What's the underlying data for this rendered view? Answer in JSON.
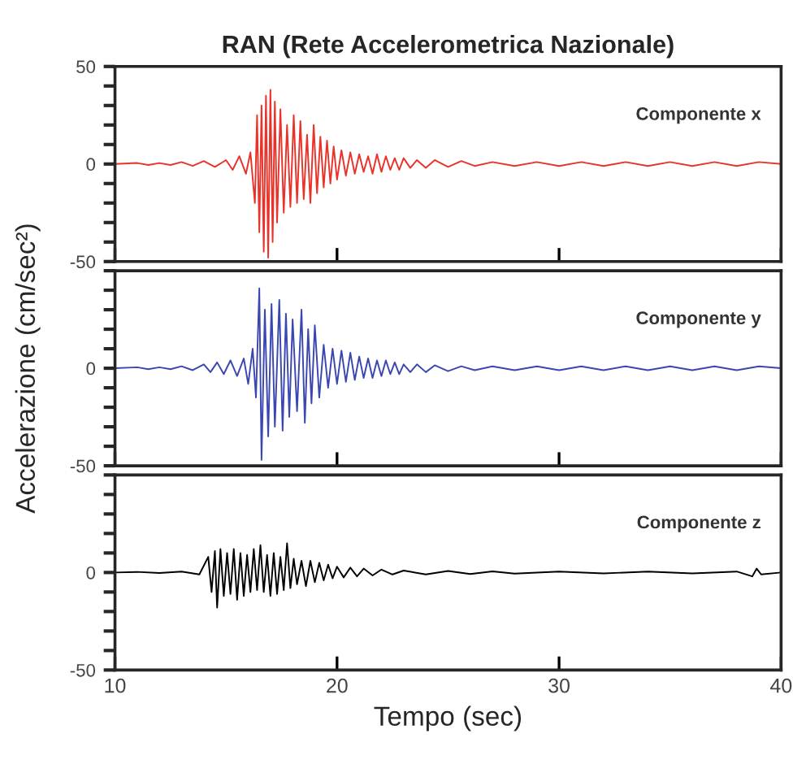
{
  "chart_data": [
    {
      "type": "line",
      "title": "RAN (Rete Accelerometrica Nazionale)",
      "annotations": [
        "Componente x"
      ],
      "tick_labels": "y",
      "line_style": "solid",
      "xlim": [
        10,
        40
      ],
      "xticks": [
        {
          "value": 10,
          "label": null
        },
        {
          "value": 20,
          "label": null
        },
        {
          "value": 30,
          "label": null
        },
        {
          "value": 40,
          "label": null
        }
      ],
      "ylim": [
        -50,
        50
      ],
      "yticks": [
        -50,
        {
          "value": -40,
          "label": null
        },
        {
          "value": -30,
          "label": null
        },
        {
          "value": -20,
          "label": null
        },
        {
          "value": -10,
          "label": null
        },
        0,
        {
          "value": 10,
          "label": null
        },
        {
          "value": 20,
          "label": null
        },
        {
          "value": 30,
          "label": null
        },
        {
          "value": 40,
          "label": null
        },
        50
      ],
      "series": [
        {
          "color": "#e8322a",
          "x": [
            10,
            11,
            11.5,
            12,
            12.5,
            13,
            13.5,
            14,
            14.5,
            15,
            15.3,
            15.6,
            15.9,
            16.1,
            16.3,
            16.4,
            16.5,
            16.6,
            16.7,
            16.8,
            16.9,
            17.0,
            17.1,
            17.2,
            17.3,
            17.45,
            17.6,
            17.75,
            17.9,
            18.05,
            18.2,
            18.35,
            18.5,
            18.65,
            18.8,
            18.95,
            19.1,
            19.25,
            19.4,
            19.55,
            19.7,
            19.85,
            20.0,
            20.2,
            20.4,
            20.6,
            20.8,
            21.0,
            21.2,
            21.4,
            21.6,
            21.8,
            22.0,
            22.2,
            22.4,
            22.6,
            22.8,
            23.0,
            23.3,
            23.6,
            24,
            24.4,
            25,
            25.6,
            26.2,
            27,
            28,
            29,
            30,
            31,
            32,
            33,
            34,
            35,
            36,
            37,
            38,
            39,
            40
          ],
          "values": [
            0,
            0.5,
            -0.5,
            0.5,
            -0.5,
            1,
            -1,
            1.5,
            -1.5,
            2,
            -3,
            4,
            -5,
            6,
            -20,
            25,
            -35,
            30,
            -45,
            35,
            -48,
            38,
            -40,
            32,
            -30,
            28,
            -25,
            20,
            -22,
            25,
            -20,
            22,
            -18,
            15,
            -20,
            20,
            -15,
            14,
            -12,
            12,
            -10,
            9,
            -8,
            7,
            -6,
            6,
            -5,
            5,
            -4,
            4,
            -5,
            5,
            -4,
            4,
            -3,
            3,
            -3,
            3,
            -2,
            2,
            -2,
            2,
            -1.5,
            1.5,
            -1,
            1,
            -1,
            1,
            -1,
            1,
            -1,
            1,
            -1,
            1,
            -1,
            1,
            -1,
            1,
            0
          ]
        }
      ]
    },
    {
      "type": "line",
      "ylabel": "Accelerazione (cm/sec²)",
      "annotations": [
        "Componente y"
      ],
      "tick_labels": "y",
      "line_style": "solid",
      "xlim": [
        10,
        40
      ],
      "xticks": [
        {
          "value": 10,
          "label": null
        },
        {
          "value": 20,
          "label": null
        },
        {
          "value": 30,
          "label": null
        },
        {
          "value": 40,
          "label": null
        }
      ],
      "ylim": [
        -50,
        50
      ],
      "yticks": [
        -50,
        {
          "value": -40,
          "label": null
        },
        {
          "value": -30,
          "label": null
        },
        {
          "value": -20,
          "label": null
        },
        {
          "value": -10,
          "label": null
        },
        0,
        {
          "value": 10,
          "label": null
        },
        {
          "value": 20,
          "label": null
        },
        {
          "value": 30,
          "label": null
        },
        {
          "value": 40,
          "label": null
        },
        {
          "value": 50,
          "label": null
        }
      ],
      "series": [
        {
          "color": "#3b47b0",
          "x": [
            10,
            11,
            11.5,
            12,
            12.5,
            13,
            13.5,
            14,
            14.3,
            14.6,
            14.9,
            15.2,
            15.5,
            15.8,
            16.0,
            16.2,
            16.35,
            16.5,
            16.6,
            16.75,
            16.9,
            17.05,
            17.2,
            17.4,
            17.55,
            17.7,
            17.85,
            18.0,
            18.2,
            18.4,
            18.55,
            18.7,
            18.85,
            19.0,
            19.2,
            19.4,
            19.6,
            19.8,
            20.0,
            20.2,
            20.4,
            20.6,
            20.8,
            21.0,
            21.2,
            21.4,
            21.6,
            21.8,
            22.0,
            22.2,
            22.4,
            22.6,
            22.8,
            23.0,
            23.3,
            23.6,
            24,
            24.4,
            25,
            25.6,
            26.2,
            27,
            28,
            29,
            30,
            31,
            32,
            33,
            34,
            35,
            36,
            37,
            38,
            39,
            40
          ],
          "values": [
            0,
            0.5,
            -0.5,
            0.5,
            -0.5,
            1,
            -1,
            2,
            -2,
            3,
            -3,
            4,
            -4,
            5,
            -8,
            10,
            -15,
            41,
            -47,
            30,
            -35,
            33,
            -30,
            35,
            -32,
            28,
            -25,
            25,
            -22,
            30,
            -28,
            20,
            -18,
            22,
            -15,
            12,
            -10,
            10,
            -8,
            9,
            -7,
            8,
            -6,
            6,
            -5,
            5,
            -5,
            4,
            -4,
            4,
            -3,
            3,
            -3,
            2,
            -2,
            2,
            -2,
            1.5,
            -1.5,
            1,
            -1,
            1,
            -1,
            1,
            -1,
            1,
            -1,
            1,
            -1,
            1,
            -1,
            1,
            -1,
            1,
            0
          ]
        }
      ]
    },
    {
      "type": "line",
      "xlabel": "Tempo (sec)",
      "annotations": [
        "Componente z"
      ],
      "line_style": "solid",
      "xlim": [
        10,
        40
      ],
      "xticks": [
        10,
        20,
        30,
        40
      ],
      "ylim": [
        -50,
        50
      ],
      "yticks": [
        -50,
        {
          "value": -40,
          "label": null
        },
        {
          "value": -30,
          "label": null
        },
        {
          "value": -20,
          "label": null
        },
        {
          "value": -10,
          "label": null
        },
        0,
        {
          "value": 10,
          "label": null
        },
        {
          "value": 20,
          "label": null
        },
        {
          "value": 30,
          "label": null
        },
        {
          "value": 40,
          "label": null
        },
        {
          "value": 50,
          "label": null
        }
      ],
      "series": [
        {
          "color": "#000000",
          "x": [
            10,
            11,
            12,
            13,
            13.8,
            14.2,
            14.35,
            14.5,
            14.6,
            14.75,
            14.9,
            15.05,
            15.2,
            15.35,
            15.5,
            15.65,
            15.8,
            15.95,
            16.1,
            16.25,
            16.4,
            16.55,
            16.7,
            16.85,
            17.0,
            17.15,
            17.3,
            17.45,
            17.6,
            17.75,
            17.9,
            18.05,
            18.2,
            18.4,
            18.6,
            18.8,
            19.0,
            19.2,
            19.4,
            19.6,
            19.8,
            20.0,
            20.3,
            20.6,
            20.9,
            21.2,
            21.6,
            22,
            22.5,
            23,
            24,
            25,
            26,
            27,
            28,
            30,
            32,
            34,
            36,
            38,
            38.7,
            38.9,
            39.1,
            40
          ],
          "values": [
            0,
            0.3,
            -0.3,
            0.5,
            -1,
            8,
            -10,
            11,
            -18,
            12,
            -12,
            10,
            -11,
            12,
            -14,
            10,
            -12,
            9,
            -10,
            12,
            -9,
            14,
            -10,
            9,
            -12,
            10,
            -11,
            8,
            -9,
            15,
            -8,
            7,
            -6,
            6,
            -7,
            6,
            -5,
            5,
            -4,
            4,
            -3,
            3,
            -2.5,
            2.5,
            -2,
            2,
            -1.5,
            1.5,
            -1,
            1,
            -1,
            0.8,
            -0.8,
            0.6,
            -0.6,
            0.5,
            -0.5,
            0.5,
            -0.5,
            0.5,
            -2,
            2,
            -1,
            0
          ]
        }
      ]
    }
  ]
}
